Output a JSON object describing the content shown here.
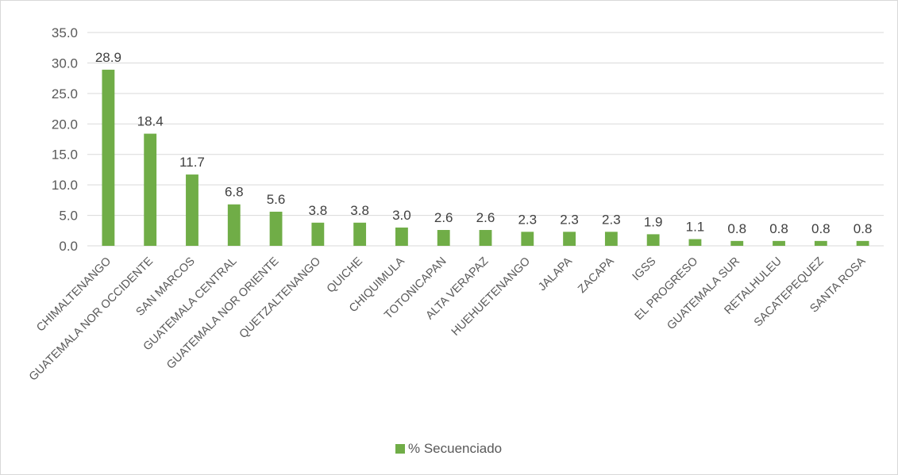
{
  "chart_data": {
    "type": "bar",
    "categories": [
      "CHIMALTENANGO",
      "GUATEMALA NOR OCCIDENTE",
      "SAN MARCOS",
      "GUATEMALA CENTRAL",
      "GUATEMALA NOR ORIENTE",
      "QUETZALTENANGO",
      "QUICHE",
      "CHIQUIMULA",
      "TOTONICAPAN",
      "ALTA VERAPAZ",
      "HUEHUETENANGO",
      "JALAPA",
      "ZACAPA",
      "IGSS",
      "EL PROGRESO",
      "GUATEMALA SUR",
      "RETALHULEU",
      "SACATEPEQUEZ",
      "SANTA ROSA"
    ],
    "series": [
      {
        "name": "% Secuenciado",
        "values": [
          28.9,
          18.4,
          11.7,
          6.8,
          5.6,
          3.8,
          3.8,
          3.0,
          2.6,
          2.6,
          2.3,
          2.3,
          2.3,
          1.9,
          1.1,
          0.8,
          0.8,
          0.8,
          0.8
        ],
        "color": "#70ad47"
      }
    ],
    "title": "",
    "xlabel": "",
    "ylabel": "",
    "ylim": [
      0,
      35
    ],
    "yticks": [
      "0.0",
      "5.0",
      "10.0",
      "15.0",
      "20.0",
      "25.0",
      "30.0",
      "35.0"
    ],
    "grid": true,
    "legend_position": "bottom",
    "gridline_color": "#d9d9d9"
  }
}
